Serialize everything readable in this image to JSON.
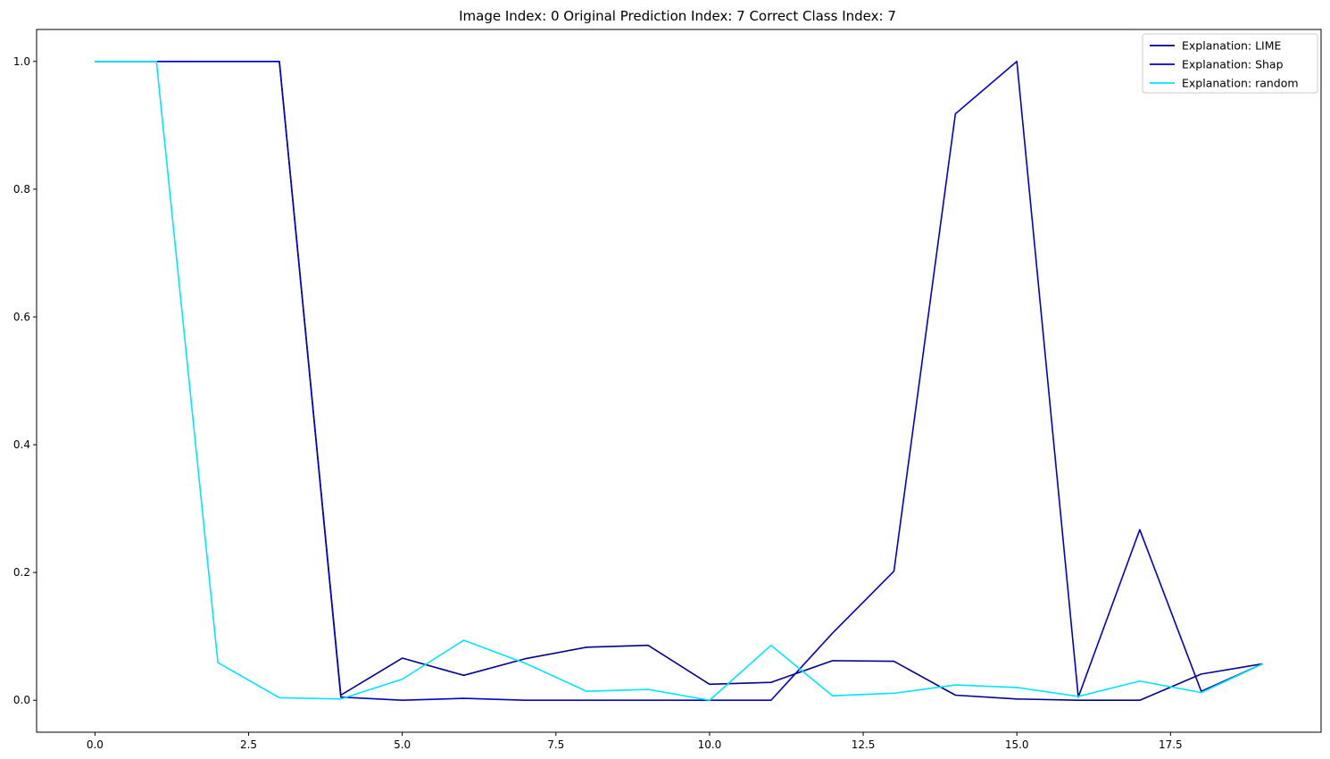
{
  "chart_data": {
    "type": "line",
    "title": "Image Index: 0 Original Prediction Index: 7 Correct Class Index: 7",
    "xlabel": "",
    "ylabel": "",
    "xlim": [
      -0.95,
      19.95
    ],
    "ylim": [
      -0.05,
      1.05
    ],
    "xticks": [
      0.0,
      2.5,
      5.0,
      7.5,
      10.0,
      12.5,
      15.0,
      17.5
    ],
    "xtick_labels": [
      "0.0",
      "2.5",
      "5.0",
      "7.5",
      "10.0",
      "12.5",
      "15.0",
      "17.5"
    ],
    "yticks": [
      0.0,
      0.2,
      0.4,
      0.6,
      0.8,
      1.0
    ],
    "ytick_labels": [
      "0.0",
      "0.2",
      "0.4",
      "0.6",
      "0.8",
      "1.0"
    ],
    "grid": false,
    "legend_position": "top-right",
    "x": [
      0,
      1,
      2,
      3,
      4,
      5,
      6,
      7,
      8,
      9,
      10,
      11,
      12,
      13,
      14,
      15,
      16,
      17,
      18,
      19
    ],
    "series": [
      {
        "name": "Explanation: LIME",
        "color": "#00008b",
        "values": [
          1.0,
          1.0,
          1.0,
          1.0,
          0.008,
          0.066,
          0.039,
          0.065,
          0.083,
          0.086,
          0.025,
          0.028,
          0.062,
          0.061,
          0.008,
          0.002,
          0.0,
          0.0,
          0.041,
          0.057
        ]
      },
      {
        "name": "Explanation: Shap",
        "color": "#0000cd",
        "values": [
          1.0,
          1.0,
          1.0,
          1.0,
          0.005,
          0.0,
          0.003,
          0.0,
          0.0,
          0.0,
          0.0,
          0.0,
          0.105,
          0.202,
          0.918,
          1.0,
          0.005,
          0.267,
          0.014,
          0.057
        ]
      },
      {
        "name": "Explanation: random",
        "color": "#00e5ff",
        "values": [
          1.0,
          1.0,
          0.059,
          0.004,
          0.002,
          0.033,
          0.094,
          0.058,
          0.014,
          0.017,
          0.0,
          0.086,
          0.007,
          0.011,
          0.024,
          0.02,
          0.006,
          0.03,
          0.012,
          0.057
        ]
      }
    ]
  }
}
